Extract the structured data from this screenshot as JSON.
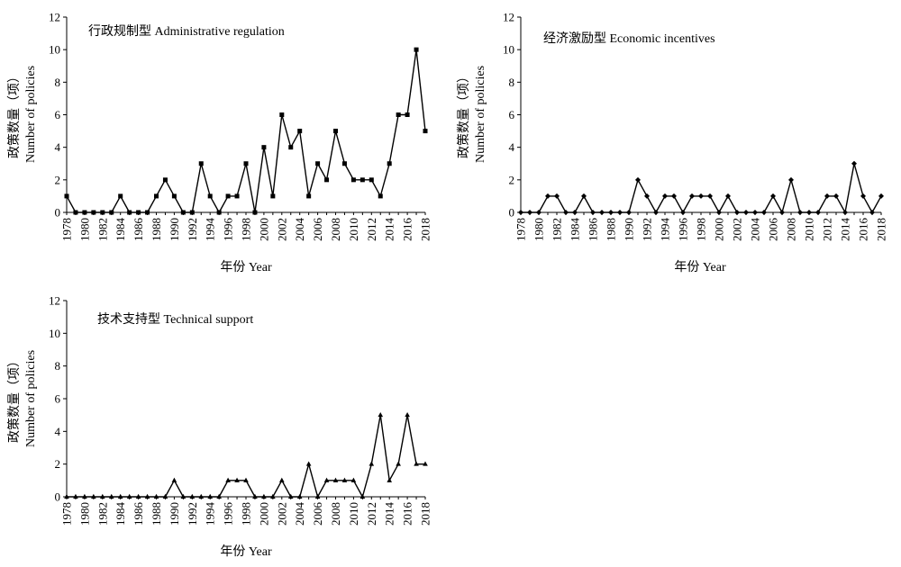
{
  "chart_data": [
    {
      "type": "line",
      "title": "行政规制型 Administrative regulation",
      "xlabel": "年份 Year",
      "ylabel_cn": "政策数量（项）",
      "ylabel_en": "Number of policies",
      "ylim": [
        0,
        12
      ],
      "yticks": [
        0,
        2,
        4,
        6,
        8,
        10,
        12
      ],
      "xlim": [
        1978,
        2018
      ],
      "xticks": [
        1978,
        1980,
        1982,
        1984,
        1986,
        1988,
        1990,
        1992,
        1994,
        1996,
        1998,
        2000,
        2002,
        2004,
        2006,
        2008,
        2010,
        2012,
        2014,
        2016,
        2018
      ],
      "marker": "square",
      "x": [
        1978,
        1979,
        1980,
        1981,
        1982,
        1983,
        1984,
        1985,
        1986,
        1987,
        1988,
        1989,
        1990,
        1991,
        1992,
        1993,
        1994,
        1995,
        1996,
        1997,
        1998,
        1999,
        2000,
        2001,
        2002,
        2003,
        2004,
        2005,
        2006,
        2007,
        2008,
        2009,
        2010,
        2011,
        2012,
        2013,
        2014,
        2015,
        2016,
        2017,
        2018
      ],
      "values": [
        1,
        0,
        0,
        0,
        0,
        0,
        1,
        0,
        0,
        0,
        1,
        2,
        1,
        0,
        0,
        3,
        1,
        0,
        1,
        1,
        3,
        0,
        4,
        1,
        6,
        4,
        5,
        1,
        3,
        2,
        5,
        3,
        2,
        2,
        2,
        1,
        3,
        6,
        6,
        10,
        5
      ]
    },
    {
      "type": "line",
      "title": "经济激励型 Economic incentives",
      "xlabel": "年份 Year",
      "ylabel_cn": "政策数量（项）",
      "ylabel_en": "Number of policies",
      "ylim": [
        0,
        12
      ],
      "yticks": [
        0,
        2,
        4,
        6,
        8,
        10,
        12
      ],
      "xlim": [
        1978,
        2018
      ],
      "xticks": [
        1978,
        1980,
        1982,
        1984,
        1986,
        1988,
        1990,
        1992,
        1994,
        1996,
        1998,
        2000,
        2002,
        2004,
        2006,
        2008,
        2010,
        2012,
        2014,
        2016,
        2018
      ],
      "marker": "diamond",
      "x": [
        1978,
        1979,
        1980,
        1981,
        1982,
        1983,
        1984,
        1985,
        1986,
        1987,
        1988,
        1989,
        1990,
        1991,
        1992,
        1993,
        1994,
        1995,
        1996,
        1997,
        1998,
        1999,
        2000,
        2001,
        2002,
        2003,
        2004,
        2005,
        2006,
        2007,
        2008,
        2009,
        2010,
        2011,
        2012,
        2013,
        2014,
        2015,
        2016,
        2017,
        2018
      ],
      "values": [
        0,
        0,
        0,
        1,
        1,
        0,
        0,
        1,
        0,
        0,
        0,
        0,
        0,
        2,
        1,
        0,
        1,
        1,
        0,
        1,
        1,
        1,
        0,
        1,
        0,
        0,
        0,
        0,
        1,
        0,
        2,
        0,
        0,
        0,
        1,
        1,
        0,
        3,
        1,
        0,
        1
      ]
    },
    {
      "type": "line",
      "title": "技术支持型 Technical support",
      "xlabel": "年份 Year",
      "ylabel_cn": "政策数量（项）",
      "ylabel_en": "Number of policies",
      "ylim": [
        0,
        12
      ],
      "yticks": [
        0,
        2,
        4,
        6,
        8,
        10,
        12
      ],
      "xlim": [
        1978,
        2018
      ],
      "xticks": [
        1978,
        1980,
        1982,
        1984,
        1986,
        1988,
        1990,
        1992,
        1994,
        1996,
        1998,
        2000,
        2002,
        2004,
        2006,
        2008,
        2010,
        2012,
        2014,
        2016,
        2018
      ],
      "marker": "triangle",
      "x": [
        1978,
        1979,
        1980,
        1981,
        1982,
        1983,
        1984,
        1985,
        1986,
        1987,
        1988,
        1989,
        1990,
        1991,
        1992,
        1993,
        1994,
        1995,
        1996,
        1997,
        1998,
        1999,
        2000,
        2001,
        2002,
        2003,
        2004,
        2005,
        2006,
        2007,
        2008,
        2009,
        2010,
        2011,
        2012,
        2013,
        2014,
        2015,
        2016,
        2017,
        2018
      ],
      "values": [
        0,
        0,
        0,
        0,
        0,
        0,
        0,
        0,
        0,
        0,
        0,
        0,
        1,
        0,
        0,
        0,
        0,
        0,
        1,
        1,
        1,
        0,
        0,
        0,
        1,
        0,
        0,
        2,
        0,
        1,
        1,
        1,
        1,
        0,
        2,
        5,
        1,
        2,
        5,
        2,
        2
      ]
    }
  ]
}
